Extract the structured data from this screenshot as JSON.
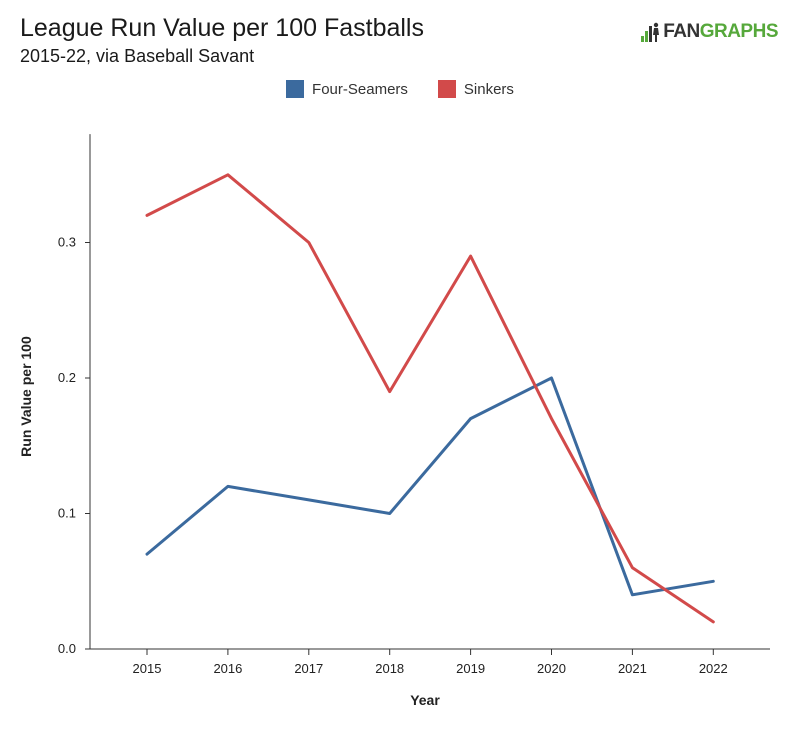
{
  "header": {
    "title": "League Run Value per 100 Fastballs",
    "subtitle": "2015-22, via Baseball Savant"
  },
  "logo": {
    "text_fan": "FAN",
    "text_graphs": "GRAPHS",
    "icon": "fangraphs-logo-icon"
  },
  "colors": {
    "four_seamers": "#3b6a9e",
    "sinkers": "#d24a4a",
    "axis": "#333333",
    "logo_green": "#56a83b"
  },
  "chart_data": {
    "type": "line",
    "title": "League Run Value per 100 Fastballs",
    "subtitle": "2015-22, via Baseball Savant",
    "xlabel": "Year",
    "ylabel": "Run Value per 100",
    "x": [
      "2015",
      "2016",
      "2017",
      "2018",
      "2019",
      "2020",
      "2021",
      "2022"
    ],
    "ylim": [
      0,
      0.38
    ],
    "yticks": [
      0.0,
      0.1,
      0.2,
      0.3
    ],
    "ytick_labels": [
      "0.0",
      "0.1",
      "0.2",
      "0.3"
    ],
    "grid": false,
    "legend_position": "top-center",
    "series": [
      {
        "name": "Four-Seamers",
        "color": "#3b6a9e",
        "values": [
          0.07,
          0.12,
          0.11,
          0.1,
          0.17,
          0.2,
          0.04,
          0.05
        ]
      },
      {
        "name": "Sinkers",
        "color": "#d24a4a",
        "values": [
          0.32,
          0.35,
          0.3,
          0.19,
          0.29,
          0.17,
          0.06,
          0.02
        ]
      }
    ]
  }
}
